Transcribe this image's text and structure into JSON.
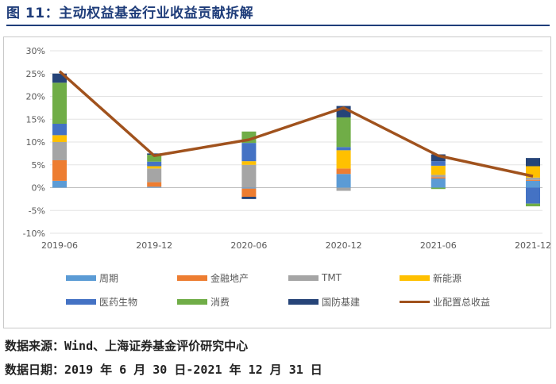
{
  "figure": {
    "title": "图 11：主动权益基金行业收益贡献拆解",
    "source": "数据来源：Wind、上海证券基金评价研究中心",
    "date_range": "数据日期：2019 年 6 月 30 日-2021 年 12 月 31 日"
  },
  "chart_data": {
    "type": "bar",
    "stacked": true,
    "categories": [
      "2019-06",
      "2019-12",
      "2020-06",
      "2020-12",
      "2021-06",
      "2021-12"
    ],
    "y_ticks": [
      "30%",
      "25%",
      "20%",
      "15%",
      "10%",
      "5%",
      "0%",
      "-5%",
      "-10%"
    ],
    "ylim": [
      -10,
      30
    ],
    "grid": true,
    "legend_position": "bottom",
    "series": [
      {
        "name": "周期",
        "color": "#5b9bd5",
        "values": [
          1.5,
          0.2,
          -0.2,
          3.0,
          2.0,
          1.5
        ]
      },
      {
        "name": "金融地产",
        "color": "#ed7d31",
        "values": [
          4.5,
          1.0,
          -1.8,
          1.2,
          0.3,
          0.2
        ]
      },
      {
        "name": "TMT",
        "color": "#a5a5a5",
        "values": [
          4.0,
          3.0,
          5.0,
          -0.7,
          0.5,
          0.5
        ]
      },
      {
        "name": "新能源",
        "color": "#ffc000",
        "values": [
          1.5,
          0.5,
          0.8,
          4.0,
          2.0,
          2.5
        ]
      },
      {
        "name": "医药生物",
        "color": "#4472c4",
        "values": [
          2.5,
          1.0,
          4.0,
          0.7,
          1.0,
          -3.5
        ]
      },
      {
        "name": "消费",
        "color": "#70ad47",
        "values": [
          9.0,
          1.5,
          2.5,
          6.5,
          -0.3,
          -0.6
        ]
      },
      {
        "name": "国防基建",
        "color": "#264478",
        "values": [
          2.0,
          0.3,
          -0.5,
          2.5,
          1.5,
          1.8
        ]
      }
    ],
    "line": {
      "name": "业配置总收益",
      "color": "#a0521d",
      "values": [
        25.5,
        7.0,
        10.5,
        17.5,
        7.0,
        2.5
      ]
    }
  }
}
